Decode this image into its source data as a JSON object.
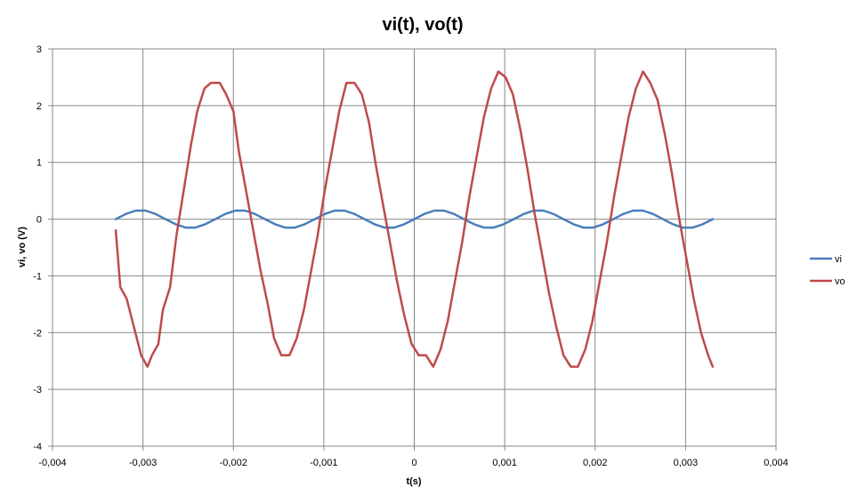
{
  "chart_data": {
    "type": "line",
    "title": "vi(t), vo(t)",
    "xlabel": "t(s)",
    "ylabel": "vi, vo (V)",
    "xlim": [
      -0.004,
      0.004
    ],
    "ylim": [
      -4,
      3
    ],
    "x_ticks": [
      -0.004,
      -0.003,
      -0.002,
      -0.001,
      0,
      0.001,
      0.002,
      0.003,
      0.004
    ],
    "x_tick_labels": [
      "-0,004",
      "-0,003",
      "-0,002",
      "-0,001",
      "0",
      "0,001",
      "0,002",
      "0,003",
      "0,004"
    ],
    "y_ticks": [
      -4,
      -3,
      -2,
      -1,
      0,
      1,
      2,
      3
    ],
    "y_tick_labels": [
      "-4",
      "-3",
      "-2",
      "-1",
      "0",
      "1",
      "2",
      "3"
    ],
    "grid": true,
    "legend_position": "right",
    "series": [
      {
        "name": "vi",
        "color": "#4a7ebb",
        "points": [
          [
            -0.0033,
            0
          ],
          [
            -0.00319,
            0.09
          ],
          [
            -0.00308,
            0.15
          ],
          [
            -0.00297,
            0.15
          ],
          [
            -0.00286,
            0.09
          ],
          [
            -0.00275,
            0
          ],
          [
            -0.00264,
            -0.09
          ],
          [
            -0.00253,
            -0.15
          ],
          [
            -0.00242,
            -0.15
          ],
          [
            -0.00231,
            -0.09
          ],
          [
            -0.0022,
            0
          ],
          [
            -0.00209,
            0.09
          ],
          [
            -0.00198,
            0.15
          ],
          [
            -0.00187,
            0.15
          ],
          [
            -0.00176,
            0.09
          ],
          [
            -0.00165,
            0
          ],
          [
            -0.00154,
            -0.09
          ],
          [
            -0.00143,
            -0.15
          ],
          [
            -0.00132,
            -0.15
          ],
          [
            -0.00121,
            -0.09
          ],
          [
            -0.0011,
            0
          ],
          [
            -0.00099,
            0.09
          ],
          [
            -0.00088,
            0.15
          ],
          [
            -0.00077,
            0.15
          ],
          [
            -0.00066,
            0.09
          ],
          [
            -0.00055,
            0
          ],
          [
            -0.00044,
            -0.09
          ],
          [
            -0.00033,
            -0.15
          ],
          [
            -0.00022,
            -0.15
          ],
          [
            -0.00011,
            -0.09
          ],
          [
            0,
            0
          ],
          [
            0.00011,
            0.09
          ],
          [
            0.00022,
            0.15
          ],
          [
            0.00033,
            0.15
          ],
          [
            0.00044,
            0.09
          ],
          [
            0.00055,
            0
          ],
          [
            0.00066,
            -0.09
          ],
          [
            0.00077,
            -0.15
          ],
          [
            0.00088,
            -0.15
          ],
          [
            0.00099,
            -0.09
          ],
          [
            0.0011,
            0
          ],
          [
            0.00121,
            0.09
          ],
          [
            0.00132,
            0.15
          ],
          [
            0.00143,
            0.15
          ],
          [
            0.00154,
            0.09
          ],
          [
            0.00165,
            0
          ],
          [
            0.00176,
            -0.09
          ],
          [
            0.00187,
            -0.15
          ],
          [
            0.00198,
            -0.15
          ],
          [
            0.00209,
            -0.09
          ],
          [
            0.0022,
            0
          ],
          [
            0.00231,
            0.09
          ],
          [
            0.00242,
            0.15
          ],
          [
            0.00253,
            0.15
          ],
          [
            0.00264,
            0.09
          ],
          [
            0.00275,
            0
          ],
          [
            0.00286,
            -0.09
          ],
          [
            0.00297,
            -0.15
          ],
          [
            0.00308,
            -0.15
          ],
          [
            0.00319,
            -0.09
          ],
          [
            0.0033,
            0
          ]
        ]
      },
      {
        "name": "vo",
        "color": "#be4b48",
        "points": [
          [
            -0.0033,
            -0.2
          ],
          [
            -0.00325,
            -1.2
          ],
          [
            -0.00318,
            -1.4
          ],
          [
            -0.0031,
            -1.9
          ],
          [
            -0.00302,
            -2.4
          ],
          [
            -0.00295,
            -2.6
          ],
          [
            -0.0029,
            -2.4
          ],
          [
            -0.00283,
            -2.2
          ],
          [
            -0.00278,
            -1.6
          ],
          [
            -0.0027,
            -1.2
          ],
          [
            -0.00263,
            -0.3
          ],
          [
            -0.00255,
            0.5
          ],
          [
            -0.00247,
            1.3
          ],
          [
            -0.0024,
            1.9
          ],
          [
            -0.00232,
            2.3
          ],
          [
            -0.00225,
            2.4
          ],
          [
            -0.00215,
            2.4
          ],
          [
            -0.00208,
            2.2
          ],
          [
            -0.002,
            1.9
          ],
          [
            -0.00194,
            1.2
          ],
          [
            -0.00186,
            0.5
          ],
          [
            -0.00178,
            -0.2
          ],
          [
            -0.0017,
            -0.9
          ],
          [
            -0.00162,
            -1.5
          ],
          [
            -0.00155,
            -2.1
          ],
          [
            -0.00147,
            -2.4
          ],
          [
            -0.00138,
            -2.4
          ],
          [
            -0.0013,
            -2.1
          ],
          [
            -0.00122,
            -1.6
          ],
          [
            -0.00115,
            -1
          ],
          [
            -0.00107,
            -0.3
          ],
          [
            -0.00099,
            0.5
          ],
          [
            -0.00091,
            1.2
          ],
          [
            -0.00083,
            1.9
          ],
          [
            -0.00075,
            2.4
          ],
          [
            -0.00066,
            2.4
          ],
          [
            -0.00058,
            2.2
          ],
          [
            -0.0005,
            1.7
          ],
          [
            -0.00043,
            1
          ],
          [
            -0.00035,
            0.3
          ],
          [
            -0.00027,
            -0.4
          ],
          [
            -0.00019,
            -1.1
          ],
          [
            -0.00011,
            -1.7
          ],
          [
            -3e-05,
            -2.2
          ],
          [
            5e-05,
            -2.4
          ],
          [
            0.00013,
            -2.4
          ],
          [
            0.00021,
            -2.6
          ],
          [
            0.00029,
            -2.3
          ],
          [
            0.00037,
            -1.8
          ],
          [
            0.00045,
            -1.1
          ],
          [
            0.00053,
            -0.4
          ],
          [
            0.00061,
            0.4
          ],
          [
            0.00069,
            1.1
          ],
          [
            0.00077,
            1.8
          ],
          [
            0.00085,
            2.3
          ],
          [
            0.00093,
            2.6
          ],
          [
            0.00101,
            2.5
          ],
          [
            0.00109,
            2.2
          ],
          [
            0.00117,
            1.6
          ],
          [
            0.00125,
            0.9
          ],
          [
            0.00133,
            0.1
          ],
          [
            0.00141,
            -0.6
          ],
          [
            0.00149,
            -1.3
          ],
          [
            0.00157,
            -1.9
          ],
          [
            0.00165,
            -2.4
          ],
          [
            0.00173,
            -2.6
          ],
          [
            0.00181,
            -2.6
          ],
          [
            0.00189,
            -2.3
          ],
          [
            0.00197,
            -1.8
          ],
          [
            0.00205,
            -1.1
          ],
          [
            0.00213,
            -0.4
          ],
          [
            0.00221,
            0.4
          ],
          [
            0.00229,
            1.1
          ],
          [
            0.00237,
            1.8
          ],
          [
            0.00245,
            2.3
          ],
          [
            0.00253,
            2.6
          ],
          [
            0.00261,
            2.4
          ],
          [
            0.00269,
            2.1
          ],
          [
            0.00277,
            1.5
          ],
          [
            0.00285,
            0.8
          ],
          [
            0.00293,
            0
          ],
          [
            0.00301,
            -0.7
          ],
          [
            0.00309,
            -1.4
          ],
          [
            0.00317,
            -2
          ],
          [
            0.00325,
            -2.4
          ],
          [
            0.0033,
            -2.6
          ]
        ]
      }
    ]
  }
}
